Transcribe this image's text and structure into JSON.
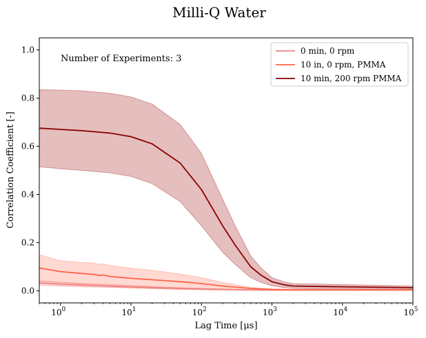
{
  "chart_data": {
    "type": "line",
    "title": "Milli-Q Water",
    "xlabel": "Lag Time [μs]",
    "ylabel": "Correlation Coefficient [-]",
    "xscale": "log",
    "xlim": [
      0.5,
      100000
    ],
    "ylim": [
      -0.05,
      1.05
    ],
    "grid": false,
    "legend_position": "top-right",
    "x_ticks": [
      {
        "value": 1,
        "base": "10",
        "exp": "0"
      },
      {
        "value": 10,
        "base": "10",
        "exp": "1"
      },
      {
        "value": 100,
        "base": "10",
        "exp": "2"
      },
      {
        "value": 1000,
        "base": "10",
        "exp": "3"
      },
      {
        "value": 10000,
        "base": "10",
        "exp": "4"
      },
      {
        "value": 100000,
        "base": "10",
        "exp": "5"
      }
    ],
    "y_ticks": [
      "0.0",
      "0.2",
      "0.4",
      "0.6",
      "0.8",
      "1.0"
    ],
    "annotation": "Number of Experiments: 3",
    "series": [
      {
        "name": "0 min, 0 rpm",
        "color": "#f08080",
        "band_color": "#f08080",
        "x": [
          0.5,
          1,
          2,
          5,
          10,
          20,
          50,
          100,
          200,
          500,
          1000,
          2000,
          5000,
          10000,
          100000
        ],
        "values": [
          0.033,
          0.028,
          0.024,
          0.02,
          0.017,
          0.014,
          0.01,
          0.008,
          0.006,
          0.004,
          0.003,
          0.003,
          0.003,
          0.003,
          0.003
        ],
        "upper": [
          0.042,
          0.036,
          0.031,
          0.026,
          0.022,
          0.018,
          0.013,
          0.01,
          0.008,
          0.005,
          0.004,
          0.004,
          0.004,
          0.004,
          0.004
        ],
        "lower": [
          0.024,
          0.02,
          0.017,
          0.014,
          0.012,
          0.01,
          0.007,
          0.006,
          0.004,
          0.003,
          0.002,
          0.002,
          0.002,
          0.002,
          0.002
        ]
      },
      {
        "name": "10 in, 0 rpm, PMMA",
        "color": "#ff6347",
        "band_color": "#ff8c75",
        "x": [
          0.5,
          1,
          2,
          3,
          3.5,
          4,
          5,
          10,
          20,
          50,
          100,
          200,
          500,
          1000,
          2000,
          5000,
          10000,
          100000
        ],
        "values": [
          0.095,
          0.08,
          0.072,
          0.068,
          0.064,
          0.066,
          0.06,
          0.052,
          0.046,
          0.038,
          0.03,
          0.02,
          0.01,
          0.006,
          0.004,
          0.004,
          0.004,
          0.004
        ],
        "upper": [
          0.15,
          0.125,
          0.118,
          0.115,
          0.11,
          0.112,
          0.105,
          0.094,
          0.085,
          0.07,
          0.055,
          0.035,
          0.014,
          0.008,
          0.006,
          0.006,
          0.006,
          0.006
        ],
        "lower": [
          0.04,
          0.035,
          0.028,
          0.024,
          0.02,
          0.022,
          0.018,
          0.012,
          0.009,
          0.006,
          0.004,
          0.003,
          0.002,
          0.002,
          0.002,
          0.002,
          0.002,
          0.002
        ]
      },
      {
        "name": "10 min, 200 rpm PMMA",
        "color": "#8b0000",
        "band_color": "#b03a3a",
        "x": [
          0.5,
          1,
          2,
          5,
          10,
          20,
          50,
          100,
          200,
          300,
          500,
          700,
          1000,
          1500,
          2000,
          5000,
          10000,
          100000
        ],
        "values": [
          0.675,
          0.67,
          0.665,
          0.655,
          0.64,
          0.61,
          0.53,
          0.42,
          0.27,
          0.19,
          0.1,
          0.065,
          0.038,
          0.025,
          0.02,
          0.018,
          0.017,
          0.013
        ],
        "upper": [
          0.835,
          0.833,
          0.83,
          0.82,
          0.805,
          0.775,
          0.69,
          0.57,
          0.38,
          0.27,
          0.145,
          0.095,
          0.055,
          0.037,
          0.03,
          0.028,
          0.026,
          0.02
        ],
        "lower": [
          0.515,
          0.507,
          0.5,
          0.49,
          0.475,
          0.445,
          0.37,
          0.27,
          0.16,
          0.11,
          0.055,
          0.035,
          0.021,
          0.013,
          0.01,
          0.008,
          0.008,
          0.006
        ]
      }
    ]
  }
}
